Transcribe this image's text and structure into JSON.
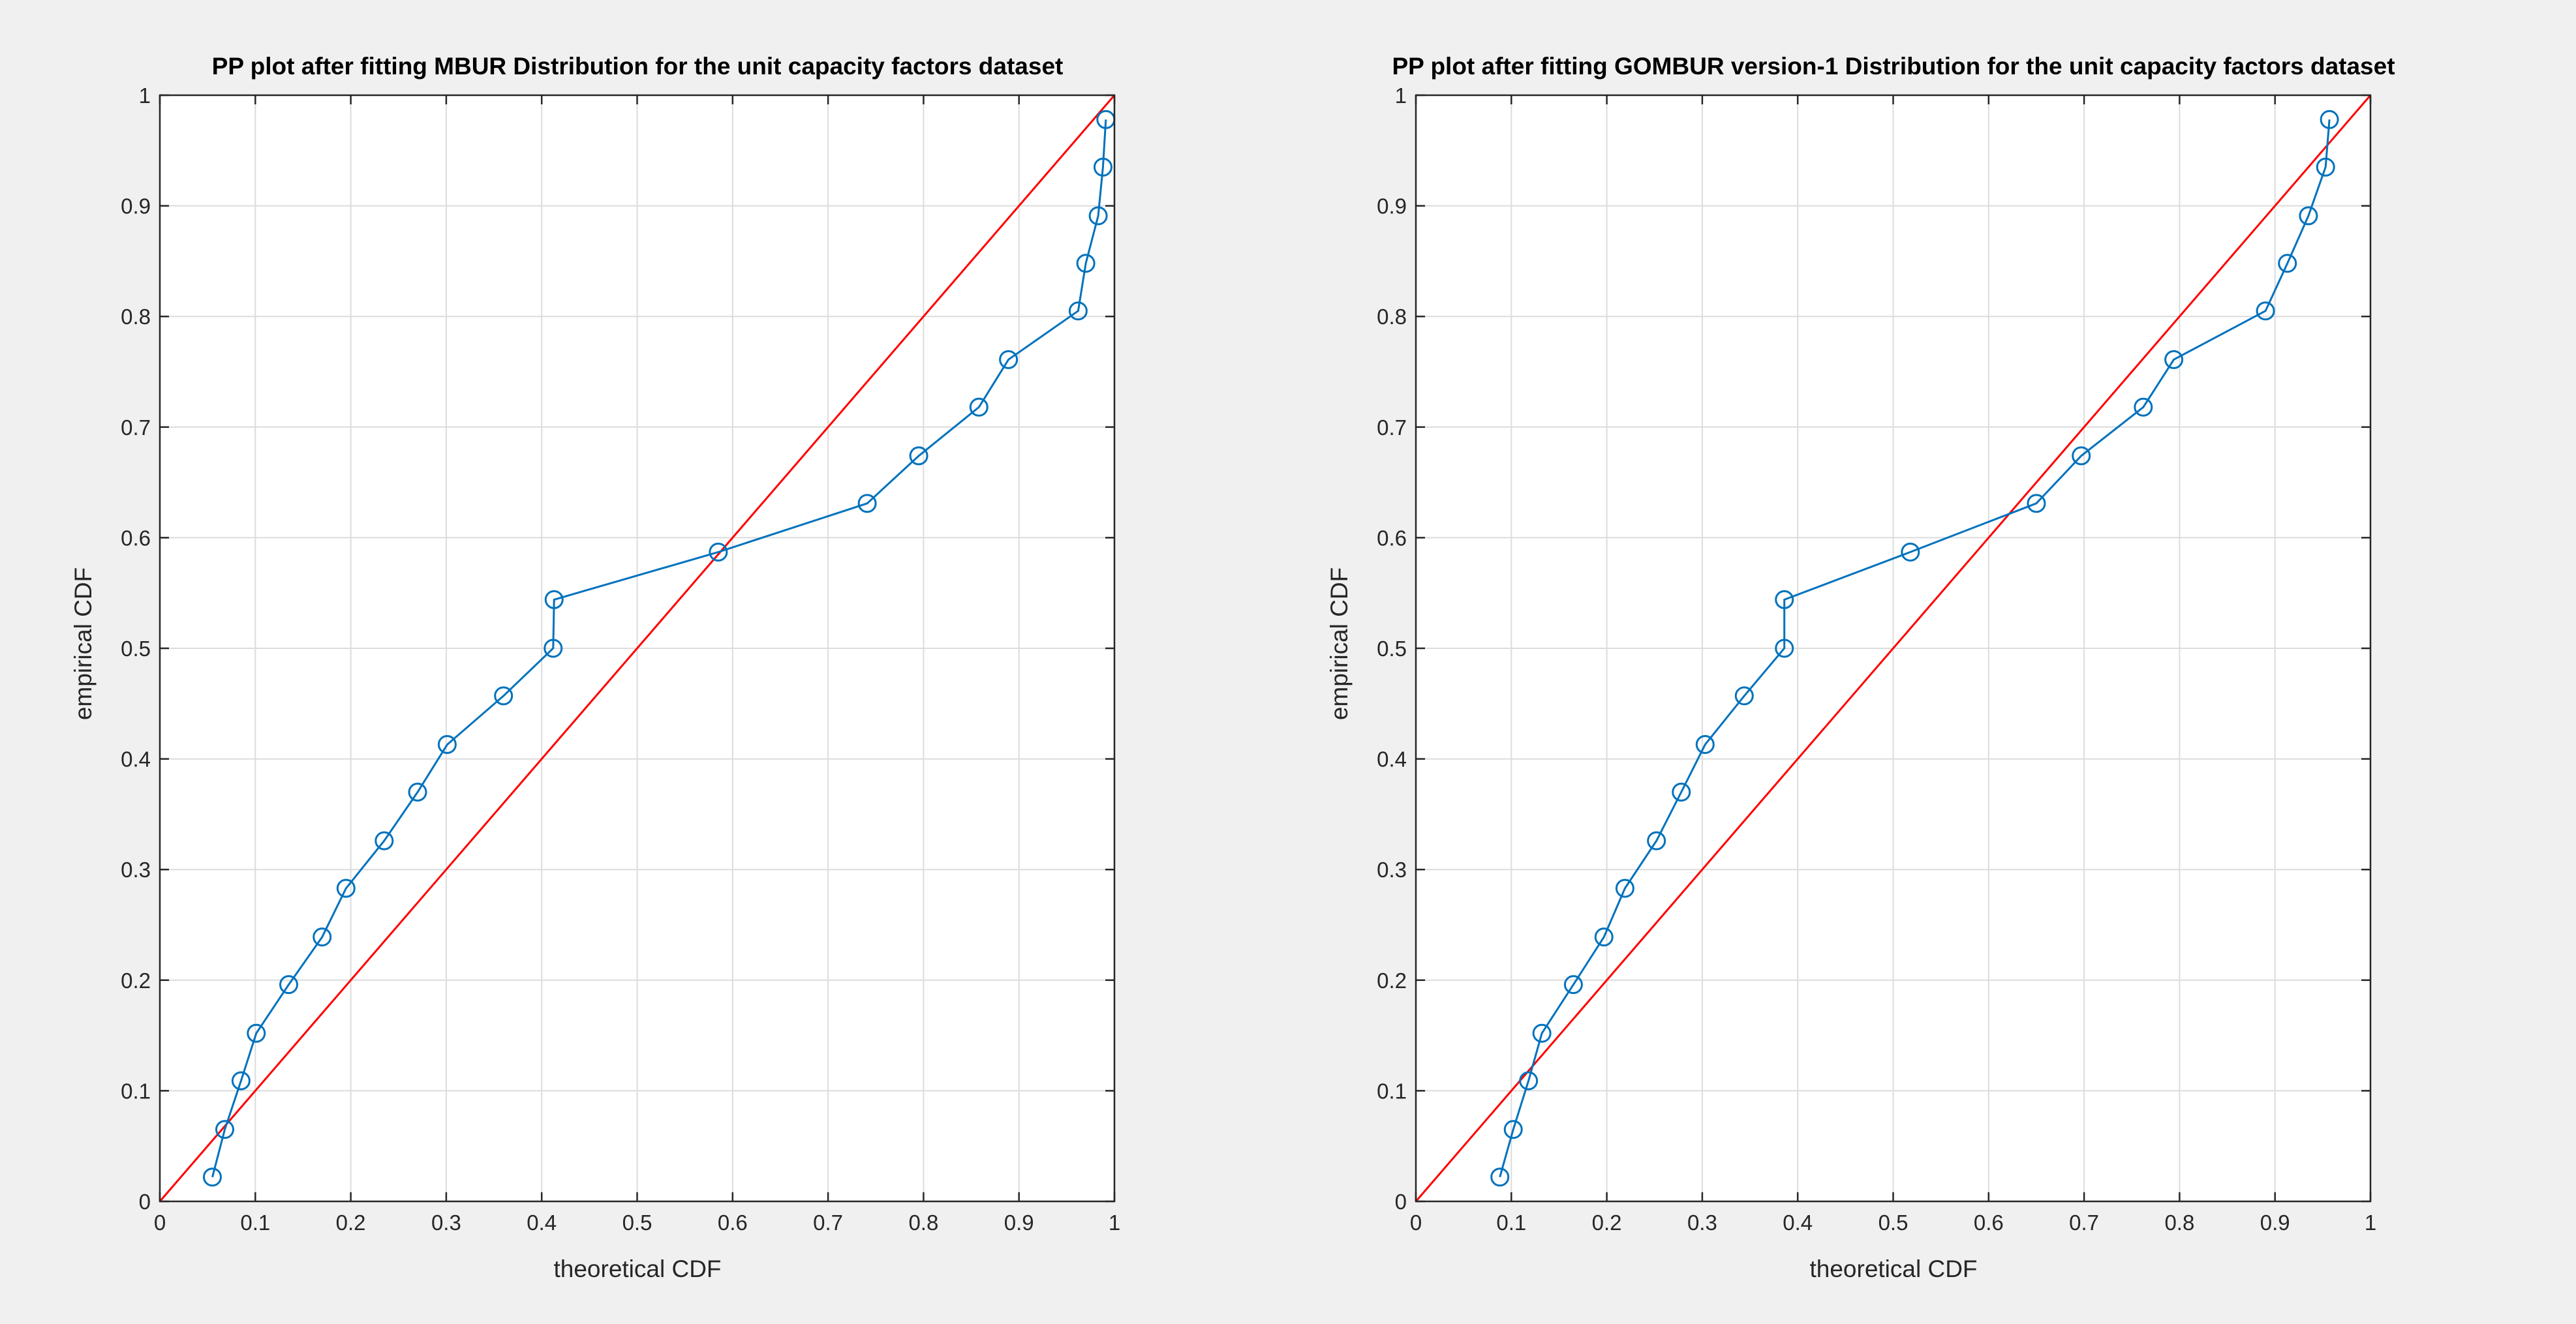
{
  "chart_data": [
    {
      "type": "scatter",
      "title": "PP plot after fitting MBUR  Distribution  for the unit capacity factors dataset",
      "xlabel": "theoretical CDF",
      "ylabel": "empirical CDF",
      "xlim": [
        0,
        1
      ],
      "ylim": [
        0,
        1
      ],
      "xticks": [
        "0",
        "0.1",
        "0.2",
        "0.3",
        "0.4",
        "0.5",
        "0.6",
        "0.7",
        "0.8",
        "0.9",
        "1"
      ],
      "yticks": [
        "0",
        "0.1",
        "0.2",
        "0.3",
        "0.4",
        "0.5",
        "0.6",
        "0.7",
        "0.8",
        "0.9",
        "1"
      ],
      "grid": true,
      "reference_line": {
        "x": [
          0,
          1
        ],
        "y": [
          0,
          1
        ],
        "color": "#ff0000"
      },
      "series": [
        {
          "color": "#0072bd",
          "marker": "circle",
          "line": true,
          "x": [
            0.055,
            0.068,
            0.085,
            0.101,
            0.135,
            0.17,
            0.195,
            0.235,
            0.27,
            0.301,
            0.36,
            0.412,
            0.413,
            0.585,
            0.741,
            0.795,
            0.858,
            0.889,
            0.962,
            0.97,
            0.983,
            0.988,
            0.991
          ],
          "y": [
            0.022,
            0.065,
            0.109,
            0.152,
            0.196,
            0.239,
            0.283,
            0.326,
            0.37,
            0.413,
            0.457,
            0.5,
            0.544,
            0.587,
            0.631,
            0.674,
            0.718,
            0.761,
            0.805,
            0.848,
            0.891,
            0.935,
            0.978
          ]
        }
      ]
    },
    {
      "type": "scatter",
      "title": "PP plot after fitting GOMBUR version-1 Distribution  for the unit capacity factors dataset",
      "xlabel": "theoretical CDF",
      "ylabel": "empirical CDF",
      "xlim": [
        0,
        1
      ],
      "ylim": [
        0,
        1
      ],
      "xticks": [
        "0",
        "0.1",
        "0.2",
        "0.3",
        "0.4",
        "0.5",
        "0.6",
        "0.7",
        "0.8",
        "0.9",
        "1"
      ],
      "yticks": [
        "0",
        "0.1",
        "0.2",
        "0.3",
        "0.4",
        "0.5",
        "0.6",
        "0.7",
        "0.8",
        "0.9",
        "1"
      ],
      "grid": true,
      "reference_line": {
        "x": [
          0,
          1
        ],
        "y": [
          0,
          1
        ],
        "color": "#ff0000"
      },
      "series": [
        {
          "color": "#0072bd",
          "marker": "circle",
          "line": true,
          "x": [
            0.088,
            0.102,
            0.118,
            0.132,
            0.165,
            0.197,
            0.219,
            0.252,
            0.278,
            0.303,
            0.344,
            0.386,
            0.386,
            0.518,
            0.65,
            0.697,
            0.762,
            0.794,
            0.89,
            0.913,
            0.935,
            0.953,
            0.957
          ],
          "y": [
            0.022,
            0.065,
            0.109,
            0.152,
            0.196,
            0.239,
            0.283,
            0.326,
            0.37,
            0.413,
            0.457,
            0.5,
            0.544,
            0.587,
            0.631,
            0.674,
            0.718,
            0.761,
            0.805,
            0.848,
            0.891,
            0.935,
            0.978
          ]
        }
      ]
    }
  ]
}
